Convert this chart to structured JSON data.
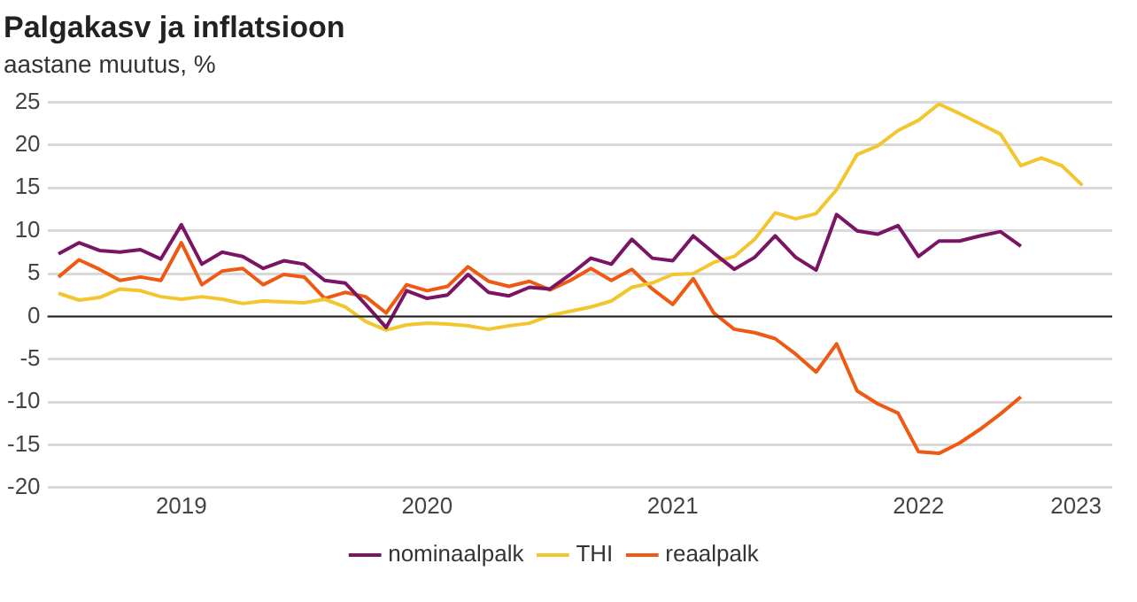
{
  "chart_data": {
    "type": "line",
    "title": "Palgakasv ja inflatsioon",
    "subtitle": "aastane muutus, %",
    "x": [
      "2019-01",
      "2019-02",
      "2019-03",
      "2019-04",
      "2019-05",
      "2019-06",
      "2019-07",
      "2019-08",
      "2019-09",
      "2019-10",
      "2019-11",
      "2019-12",
      "2020-01",
      "2020-02",
      "2020-03",
      "2020-04",
      "2020-05",
      "2020-06",
      "2020-07",
      "2020-08",
      "2020-09",
      "2020-10",
      "2020-11",
      "2020-12",
      "2021-01",
      "2021-02",
      "2021-03",
      "2021-04",
      "2021-05",
      "2021-06",
      "2021-07",
      "2021-08",
      "2021-09",
      "2021-10",
      "2021-11",
      "2021-12",
      "2022-01",
      "2022-02",
      "2022-03",
      "2022-04",
      "2022-05",
      "2022-06",
      "2022-07",
      "2022-08",
      "2022-09",
      "2022-10",
      "2022-11",
      "2022-12",
      "2023-01",
      "2023-02",
      "2023-03"
    ],
    "series": [
      {
        "name": "nominaalpalk",
        "color": "#7b1464",
        "values": [
          7.3,
          8.6,
          7.7,
          7.5,
          7.8,
          6.7,
          10.7,
          6.1,
          7.5,
          7.0,
          5.6,
          6.5,
          6.1,
          4.2,
          3.9,
          1.4,
          -1.3,
          3.0,
          2.1,
          2.5,
          4.9,
          2.8,
          2.4,
          3.4,
          3.2,
          4.9,
          6.8,
          6.1,
          9.0,
          6.8,
          6.5,
          9.4,
          7.4,
          5.5,
          6.9,
          9.4,
          6.9,
          5.4,
          11.9,
          10.0,
          9.6,
          10.6,
          7.0,
          8.8,
          8.8,
          9.4,
          9.9,
          8.2,
          null,
          null,
          null
        ]
      },
      {
        "name": "THI",
        "color": "#f2c62f",
        "values": [
          2.7,
          1.9,
          2.2,
          3.2,
          3.0,
          2.3,
          2.0,
          2.3,
          2.0,
          1.5,
          1.8,
          1.7,
          1.6,
          2.0,
          1.1,
          -0.6,
          -1.6,
          -1.0,
          -0.8,
          -0.9,
          -1.1,
          -1.5,
          -1.1,
          -0.8,
          0.1,
          0.6,
          1.1,
          1.8,
          3.4,
          3.9,
          4.9,
          5.0,
          6.3,
          7.0,
          9.0,
          12.1,
          11.4,
          12.0,
          14.8,
          18.9,
          19.9,
          21.7,
          22.9,
          24.8,
          23.7,
          22.5,
          21.3,
          17.6,
          18.5,
          17.6,
          15.3
        ]
      },
      {
        "name": "reaalpalk",
        "color": "#ee5a14",
        "values": [
          4.6,
          6.6,
          5.5,
          4.2,
          4.6,
          4.2,
          8.6,
          3.7,
          5.3,
          5.6,
          3.7,
          4.9,
          4.6,
          2.1,
          2.8,
          2.3,
          0.4,
          3.7,
          3.0,
          3.5,
          5.8,
          4.1,
          3.5,
          4.1,
          3.1,
          4.2,
          5.6,
          4.2,
          5.5,
          3.2,
          1.4,
          4.4,
          0.4,
          -1.5,
          -1.9,
          -2.6,
          -4.4,
          -6.5,
          -3.2,
          -8.7,
          -10.2,
          -11.3,
          -15.8,
          -16.0,
          -14.8,
          -13.2,
          -11.4,
          -9.4,
          null,
          null,
          null
        ]
      }
    ],
    "xlim": [
      "2018-12-15",
      "2023-04-15"
    ],
    "xticks": [
      {
        "value": "2019-07",
        "label": "2019"
      },
      {
        "value": "2020-07",
        "label": "2020"
      },
      {
        "value": "2021-07",
        "label": "2021"
      },
      {
        "value": "2022-07",
        "label": "2022"
      },
      {
        "value": "2023-02-22",
        "label": "2023"
      }
    ],
    "ylim": [
      -20,
      25
    ],
    "yticks": [
      -20,
      -15,
      -10,
      -5,
      0,
      5,
      10,
      15,
      20,
      25
    ],
    "ref_lines": [
      {
        "axis": "y",
        "value": 0,
        "color": "#222222"
      }
    ],
    "grid": "y",
    "legend": "bottom",
    "marker": "none",
    "line_style": "solid"
  }
}
